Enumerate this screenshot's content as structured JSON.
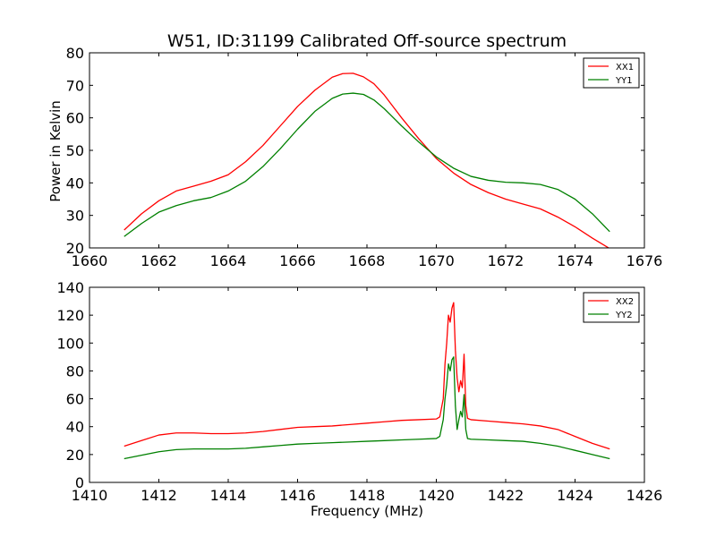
{
  "chart_data": [
    {
      "type": "line",
      "title": "W51, ID:31199 Calibrated Off-source spectrum",
      "xlabel": "",
      "ylabel": "Power in Kelvin",
      "xlim": [
        1660,
        1676
      ],
      "ylim": [
        20,
        80
      ],
      "xticks": [
        1660,
        1662,
        1664,
        1666,
        1668,
        1670,
        1672,
        1674,
        1676
      ],
      "yticks": [
        20,
        30,
        40,
        50,
        60,
        70,
        80
      ],
      "legend_position": "top-right",
      "grid": false,
      "series": [
        {
          "name": "XX1",
          "color": "#ff0000",
          "x": [
            1661.0,
            1661.5,
            1662.0,
            1662.5,
            1663.0,
            1663.5,
            1664.0,
            1664.5,
            1665.0,
            1665.5,
            1666.0,
            1666.5,
            1667.0,
            1667.3,
            1667.6,
            1667.9,
            1668.2,
            1668.5,
            1669.0,
            1669.5,
            1670.0,
            1670.5,
            1671.0,
            1671.5,
            1672.0,
            1672.5,
            1673.0,
            1673.5,
            1674.0,
            1674.5,
            1675.0
          ],
          "y": [
            25.5,
            30.5,
            34.5,
            37.5,
            39.0,
            40.5,
            42.5,
            46.5,
            51.5,
            57.5,
            63.5,
            68.5,
            72.5,
            73.6,
            73.7,
            72.6,
            70.5,
            67.0,
            60.0,
            53.5,
            47.5,
            43.0,
            39.5,
            37.0,
            35.0,
            33.5,
            32.0,
            29.5,
            26.5,
            23.0,
            19.8
          ]
        },
        {
          "name": "YY1",
          "color": "#008000",
          "x": [
            1661.0,
            1661.5,
            1662.0,
            1662.5,
            1663.0,
            1663.5,
            1664.0,
            1664.5,
            1665.0,
            1665.5,
            1666.0,
            1666.5,
            1667.0,
            1667.3,
            1667.6,
            1667.9,
            1668.2,
            1668.5,
            1669.0,
            1669.5,
            1670.0,
            1670.5,
            1671.0,
            1671.5,
            1672.0,
            1672.5,
            1673.0,
            1673.5,
            1674.0,
            1674.5,
            1675.0
          ],
          "y": [
            23.5,
            27.5,
            31.0,
            33.0,
            34.5,
            35.5,
            37.5,
            40.5,
            45.0,
            50.5,
            56.5,
            62.0,
            66.0,
            67.3,
            67.6,
            67.2,
            65.5,
            62.8,
            57.5,
            52.5,
            48.0,
            44.5,
            42.0,
            40.8,
            40.2,
            40.0,
            39.5,
            38.0,
            35.0,
            30.5,
            25.0
          ]
        }
      ]
    },
    {
      "type": "line",
      "title": "",
      "xlabel": "Frequency (MHz)",
      "ylabel": "",
      "xlim": [
        1410,
        1426
      ],
      "ylim": [
        0,
        140
      ],
      "xticks": [
        1410,
        1412,
        1414,
        1416,
        1418,
        1420,
        1422,
        1424,
        1426
      ],
      "yticks": [
        0,
        20,
        40,
        60,
        80,
        100,
        120,
        140
      ],
      "legend_position": "top-right",
      "grid": false,
      "series": [
        {
          "name": "XX2",
          "color": "#ff0000",
          "x": [
            1411.0,
            1411.5,
            1412.0,
            1412.5,
            1413.0,
            1413.5,
            1414.0,
            1414.5,
            1415.0,
            1415.5,
            1416.0,
            1416.5,
            1417.0,
            1417.5,
            1418.0,
            1418.5,
            1419.0,
            1419.5,
            1420.0,
            1420.1,
            1420.2,
            1420.25,
            1420.3,
            1420.35,
            1420.4,
            1420.45,
            1420.5,
            1420.55,
            1420.6,
            1420.65,
            1420.7,
            1420.75,
            1420.8,
            1420.85,
            1420.9,
            1421.0,
            1421.5,
            1422.0,
            1422.5,
            1423.0,
            1423.5,
            1424.0,
            1424.5,
            1425.0
          ],
          "y": [
            26,
            30,
            34,
            35.5,
            35.5,
            35,
            35,
            35.5,
            36.5,
            38,
            39.5,
            40,
            40.5,
            41.5,
            42.5,
            43.5,
            44.5,
            45,
            45.5,
            47,
            60,
            85,
            100,
            120,
            115,
            125,
            129,
            95,
            75,
            65,
            73,
            68,
            92,
            55,
            46,
            45,
            44,
            43,
            42,
            40.5,
            38,
            33,
            28,
            24
          ]
        },
        {
          "name": "YY2",
          "color": "#008000",
          "x": [
            1411.0,
            1411.5,
            1412.0,
            1412.5,
            1413.0,
            1413.5,
            1414.0,
            1414.5,
            1415.0,
            1415.5,
            1416.0,
            1416.5,
            1417.0,
            1417.5,
            1418.0,
            1418.5,
            1419.0,
            1419.5,
            1420.0,
            1420.1,
            1420.2,
            1420.25,
            1420.3,
            1420.35,
            1420.4,
            1420.45,
            1420.5,
            1420.55,
            1420.6,
            1420.65,
            1420.7,
            1420.75,
            1420.8,
            1420.85,
            1420.9,
            1421.0,
            1421.5,
            1422.0,
            1422.5,
            1423.0,
            1423.5,
            1424.0,
            1424.5,
            1425.0
          ],
          "y": [
            17,
            19.5,
            22,
            23.5,
            24,
            24,
            24,
            24.5,
            25.5,
            26.5,
            27.5,
            28,
            28.5,
            29,
            29.5,
            30,
            30.5,
            31,
            31.5,
            33,
            45,
            60,
            70,
            85,
            80,
            88,
            90,
            55,
            38,
            45,
            51,
            47,
            63,
            38,
            31.5,
            31,
            30.5,
            30,
            29.5,
            28,
            26,
            23,
            20,
            17
          ]
        }
      ]
    }
  ]
}
